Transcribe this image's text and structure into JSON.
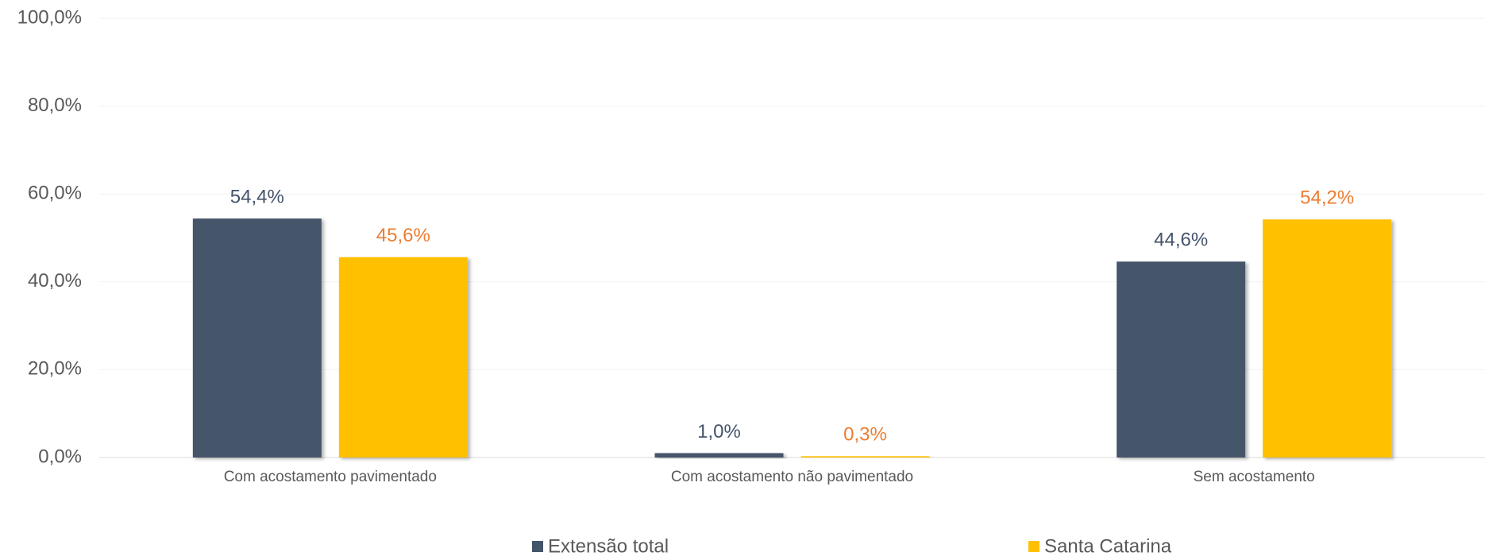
{
  "chart_data": {
    "type": "bar",
    "categories": [
      "Com acostamento pavimentado",
      "Com acostamento não pavimentado",
      "Sem acostamento"
    ],
    "series": [
      {
        "name": "Extensão total",
        "color": "#44546a",
        "label_color": "#44546a",
        "values": [
          54.4,
          1.0,
          44.6
        ],
        "value_labels": [
          "54,4%",
          "1,0%",
          "44,6%"
        ]
      },
      {
        "name": "Santa Catarina",
        "color": "#ffc000",
        "label_color": "#ed7d31",
        "values": [
          45.6,
          0.3,
          54.2
        ],
        "value_labels": [
          "45,6%",
          "0,3%",
          "54,2%"
        ]
      }
    ],
    "ylim": [
      0,
      100
    ],
    "yticks": [
      {
        "value": 0,
        "label": "0,0%"
      },
      {
        "value": 20,
        "label": "20,0%"
      },
      {
        "value": 40,
        "label": "40,0%"
      },
      {
        "value": 60,
        "label": "60,0%"
      },
      {
        "value": 80,
        "label": "80,0%"
      },
      {
        "value": 100,
        "label": "100,0%"
      }
    ],
    "grid": true,
    "legend": "bottom"
  }
}
